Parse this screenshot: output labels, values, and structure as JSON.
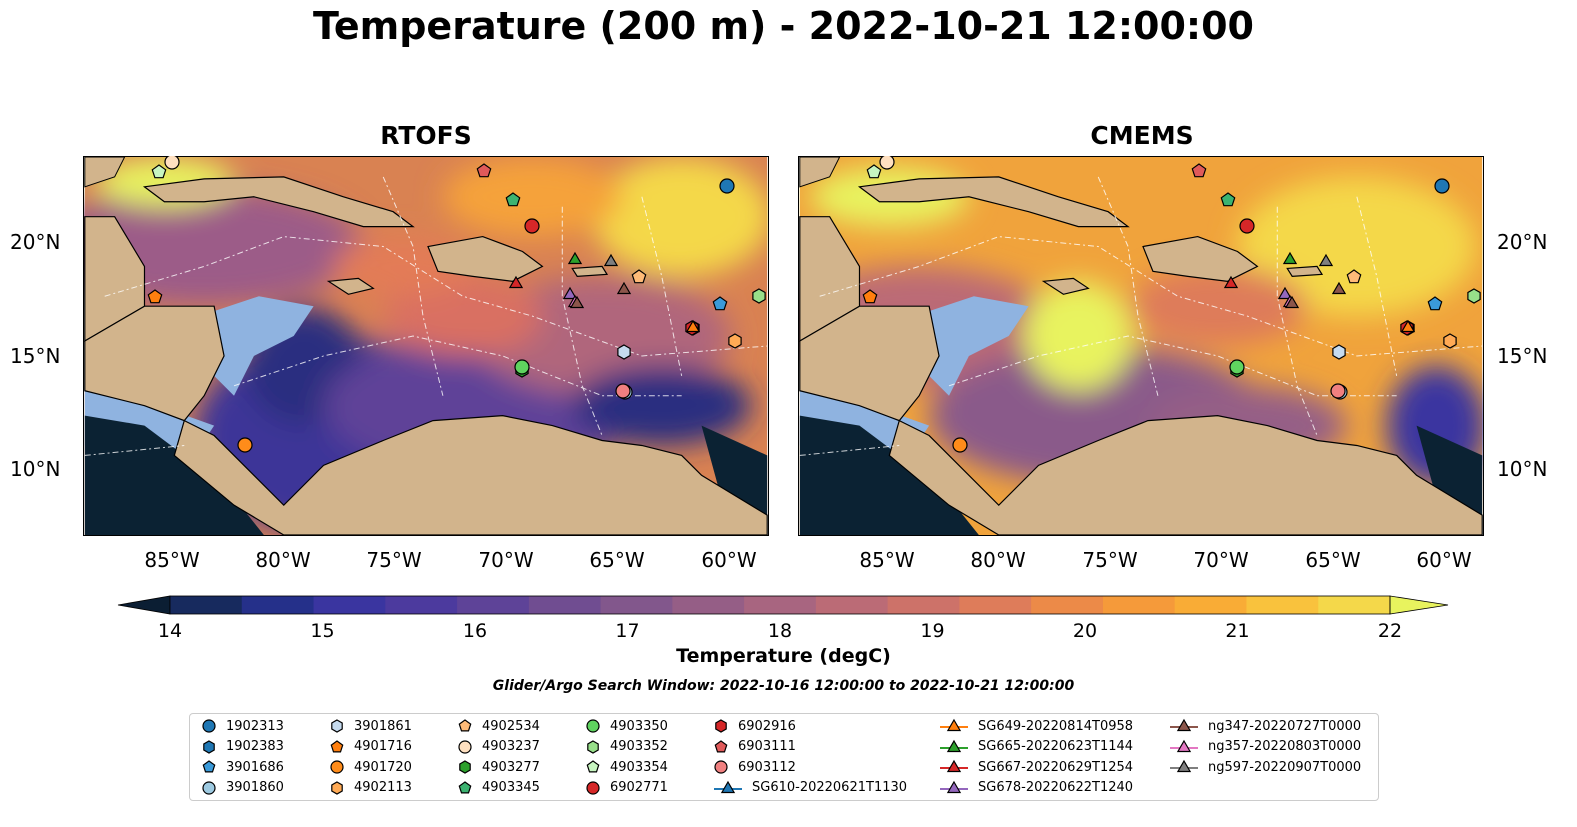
{
  "title": "Temperature (200 m) - 2022-10-21 12:00:00",
  "panels": [
    {
      "title": "RTOFS"
    },
    {
      "title": "CMEMS"
    }
  ],
  "lat_labels": [
    "20°N",
    "15°N",
    "10°N"
  ],
  "lon_labels": [
    "85°W",
    "80°W",
    "75°W",
    "70°W",
    "65°W",
    "60°W"
  ],
  "colorbar": {
    "label": "Temperature (degC)",
    "ticks": [
      "14",
      "15",
      "16",
      "17",
      "18",
      "19",
      "20",
      "21",
      "22"
    ],
    "range": [
      14,
      22
    ],
    "colors": [
      "#0b1e33",
      "#172a5e",
      "#25308a",
      "#3a35a0",
      "#4c3a9e",
      "#5e4398",
      "#704d91",
      "#82578c",
      "#955e86",
      "#a86580",
      "#bb6b76",
      "#cd7269",
      "#de7c5a",
      "#ec8a48",
      "#f59a3a",
      "#f9ac36",
      "#f9c23d",
      "#f4d84a",
      "#e8f35e"
    ]
  },
  "search_window": "Glider/Argo Search Window: 2022-10-16 12:00:00 to 2022-10-21 12:00:00",
  "legend": [
    {
      "label": "1902313",
      "marker": "circle",
      "color": "#1f77b4"
    },
    {
      "label": "1902383",
      "marker": "hexagon",
      "color": "#1f77b4"
    },
    {
      "label": "3901686",
      "marker": "pentagon",
      "color": "#3a9ad9"
    },
    {
      "label": "3901860",
      "marker": "circle",
      "color": "#9ecae1"
    },
    {
      "label": "3901861",
      "marker": "hexagon",
      "color": "#c6dbef"
    },
    {
      "label": "4901716",
      "marker": "pentagon",
      "color": "#ff7f0e"
    },
    {
      "label": "4901720",
      "marker": "circle",
      "color": "#ff8c1a"
    },
    {
      "label": "4902113",
      "marker": "hexagon",
      "color": "#ffaa55"
    },
    {
      "label": "4902534",
      "marker": "pentagon",
      "color": "#ffbb78"
    },
    {
      "label": "4903237",
      "marker": "circle",
      "color": "#ffe0c0"
    },
    {
      "label": "4903277",
      "marker": "hexagon",
      "color": "#2ca02c"
    },
    {
      "label": "4903345",
      "marker": "pentagon",
      "color": "#3cb371"
    },
    {
      "label": "4903350",
      "marker": "circle",
      "color": "#5fd35f"
    },
    {
      "label": "4903352",
      "marker": "hexagon",
      "color": "#98df8a"
    },
    {
      "label": "4903354",
      "marker": "pentagon",
      "color": "#c7f5c0"
    },
    {
      "label": "6902771",
      "marker": "circle",
      "color": "#d62728"
    },
    {
      "label": "6902916",
      "marker": "hexagon",
      "color": "#d62728"
    },
    {
      "label": "6903111",
      "marker": "pentagon",
      "color": "#e05a5a"
    },
    {
      "label": "6903112",
      "marker": "circle",
      "color": "#f08080"
    },
    {
      "label": "SG610-20220621T1130",
      "marker": "triangle-line",
      "color": "#1f77b4"
    },
    {
      "label": "SG649-20220814T0958",
      "marker": "triangle-line",
      "color": "#ff7f0e"
    },
    {
      "label": "SG665-20220623T1144",
      "marker": "triangle-line",
      "color": "#2ca02c"
    },
    {
      "label": "SG667-20220629T1254",
      "marker": "triangle-line",
      "color": "#d62728"
    },
    {
      "label": "SG678-20220622T1240",
      "marker": "triangle-line",
      "color": "#9467bd"
    },
    {
      "label": "ng347-20220727T0000",
      "marker": "triangle-line",
      "color": "#8c564b"
    },
    {
      "label": "ng357-20220803T0000",
      "marker": "triangle-line",
      "color": "#e377c2"
    },
    {
      "label": "ng597-20220907T0000",
      "marker": "triangle-line",
      "color": "#7f7f7f"
    }
  ],
  "colors": {
    "land": "#d2b48c",
    "shelf": "#8fb3e0",
    "deep": "#0b2233"
  }
}
